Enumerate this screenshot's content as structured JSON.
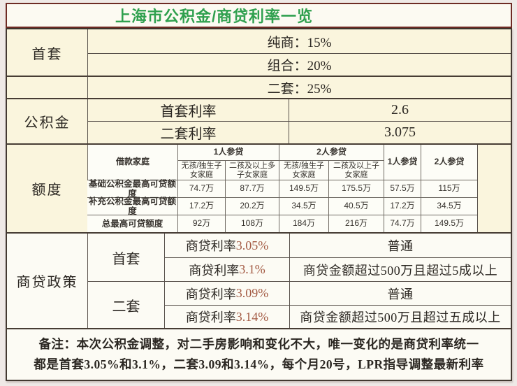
{
  "title": "上海市公积金/商贷利率一览",
  "colors": {
    "accent_green": "#2fa04e",
    "rate_red": "#a35a43",
    "title_border_maroon": "#6e2b24",
    "cell_cream": "#faf5dd"
  },
  "first_home": {
    "label": "首套",
    "pure_commercial": "纯商：15%",
    "combo": "组合：20%"
  },
  "second_home": {
    "value": "二套：25%"
  },
  "fund": {
    "label": "公积金",
    "first_rate_name": "首套利率",
    "first_rate_value": "2.6",
    "second_rate_name": "二套利率",
    "second_rate_value": "3.075"
  },
  "quota": {
    "label": "额度",
    "corner": "借款家庭",
    "group1": {
      "label": "1人参贷",
      "col1": "无孩/独生子女家庭",
      "col2": "二孩及以上多子女家庭"
    },
    "group2": {
      "label": "2人参贷",
      "col1": "无孩/独生子女家庭",
      "col2": "二孩及以上子女家庭"
    },
    "single1": "1人参贷",
    "single2": "2人参贷",
    "rows": [
      {
        "label": "基础公积金最高可贷额度",
        "v1": "74.7万",
        "v2": "87.7万",
        "v3": "149.5万",
        "v4": "175.5万",
        "v5": "57.5万",
        "v6": "115万"
      },
      {
        "label": "补充公积金最高可贷额度",
        "v1": "17.2万",
        "v2": "20.2万",
        "v3": "34.5万",
        "v4": "40.5万",
        "v5": "17.2万",
        "v6": "34.5万"
      },
      {
        "label": "总最高可贷额度",
        "v1": "92万",
        "v2": "108万",
        "v3": "184万",
        "v4": "216万",
        "v5": "74.7万",
        "v6": "149.5万"
      }
    ]
  },
  "commercial": {
    "label": "商贷政策",
    "first": {
      "label": "首套",
      "r1_prefix": "商贷利率",
      "r1_rate": "3.05%",
      "r1_cond": "普通",
      "r2_prefix": "商贷利率",
      "r2_rate": "3.1%",
      "r2_cond": "商贷金额超过500万且超过5成以上"
    },
    "second": {
      "label": "二套",
      "r1_prefix": "商贷利率",
      "r1_rate": "3.09%",
      "r1_cond": "普通",
      "r2_prefix": "商贷利率",
      "r2_rate": "3.14%",
      "r2_cond": "商贷金额超过500万且超过五成以上"
    }
  },
  "note": {
    "line1": "备注：本次公积金调整，对二手房影响和变化不大，唯一变化的是商贷利率统一",
    "line2": "都是首套3.05%和3.1%，二套3.09和3.14%，每个月20号，LPR指导调整最新利率"
  }
}
